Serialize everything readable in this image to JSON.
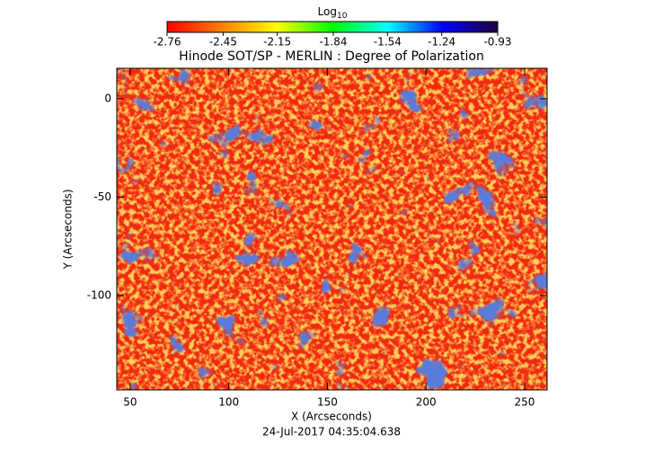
{
  "chart_data": {
    "type": "image",
    "title": "Hinode SOT/SP - MERLIN : Degree of Polarization",
    "colorbar_label": "Log",
    "colorbar_label_sub": "10",
    "colorbar_lim": [
      -2.76,
      -0.93
    ],
    "colorbar_ticks": [
      -2.76,
      -2.45,
      -2.15,
      -1.84,
      -1.54,
      -1.24,
      -0.93
    ],
    "colormap": [
      "#ff0000",
      "#ff8000",
      "#ffff00",
      "#00ff00",
      "#00ffff",
      "#0000ff",
      "#200040"
    ],
    "x_label": "X (Arcseconds)",
    "y_label": "Y (Arcseconds)",
    "xlim": [
      43.2,
      261.4
    ],
    "xticks": [
      50,
      100,
      150,
      200,
      250
    ],
    "ylim": [
      -148,
      15.5
    ],
    "yticks": [
      0,
      -50,
      -100
    ],
    "footer": "24-Jul-2017 04:35:04.638"
  }
}
